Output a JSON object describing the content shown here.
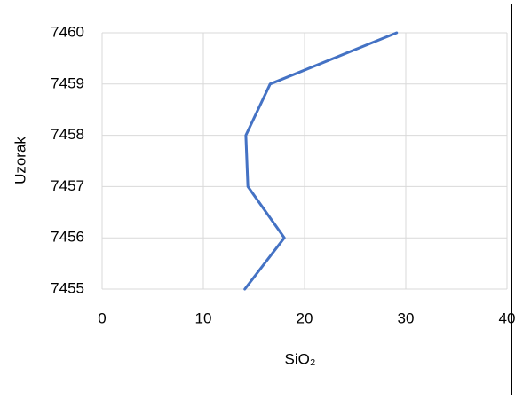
{
  "chart_data": {
    "type": "line",
    "x_label": "SiO₂",
    "y_label": "Uzorak",
    "series": [
      {
        "color": "#4472c4",
        "x": [
          14.1,
          18.0,
          14.4,
          14.2,
          16.6,
          29.1
        ],
        "values": [
          7455,
          7456,
          7457,
          7458,
          7459,
          7460
        ]
      }
    ],
    "xlim": [
      0,
      40
    ],
    "xticks": [
      0,
      10,
      20,
      30,
      40
    ],
    "ylim": [
      7455,
      7460
    ],
    "yticks": [
      7455,
      7456,
      7457,
      7458,
      7459,
      7460
    ],
    "grid": true
  }
}
